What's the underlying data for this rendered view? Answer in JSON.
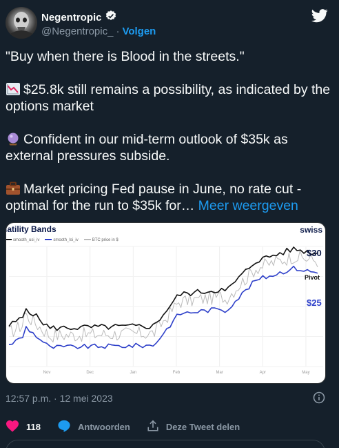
{
  "author": {
    "name": "Negentropic",
    "handle": "@Negentropic_",
    "separator": "·",
    "follow_label": "Volgen"
  },
  "tweet": {
    "p1": "\"Buy when there is Blood in the streets.\"",
    "p2": "$25.8k still remains a possibility, as indicated by the options market",
    "p3": "Confident in our mid-term outlook of $35k as external pressures subside.",
    "p4": "Market pricing Fed pause in June, no rate cut - optimal for the run to $35k for…",
    "more_label": "Meer weergeven"
  },
  "media": {
    "title": "latility Bands",
    "brand": "swiss",
    "legend": [
      "smooth_usi_iv",
      "smooth_lsi_iv",
      "BTC price in $"
    ],
    "annotations": {
      "upper": "$30",
      "pivot": "Pivot",
      "lower": "$25"
    }
  },
  "chart_data": {
    "type": "line",
    "title": "latility Bands",
    "x_ticks": [
      "Nov",
      "Dec",
      "Jan",
      "Feb",
      "Mar",
      "Apr",
      "May"
    ],
    "series": [
      {
        "name": "smooth_usi_iv",
        "color": "#111111"
      },
      {
        "name": "smooth_lsi_iv",
        "color": "#2d3fc9"
      },
      {
        "name": "BTC price in $",
        "color": "#bbbbbb"
      }
    ],
    "annotations": [
      "$30",
      "Pivot",
      "$25"
    ],
    "grid": true
  },
  "meta": {
    "timestamp": "12:57 p.m. · 12 mei 2023",
    "likes": "118",
    "reply_label": "Antwoorden",
    "share_label": "Deze Tweet delen"
  },
  "colors": {
    "background": "#15202b",
    "accent": "#1d9bf0",
    "like": "#f91880",
    "muted": "#8b98a5"
  }
}
